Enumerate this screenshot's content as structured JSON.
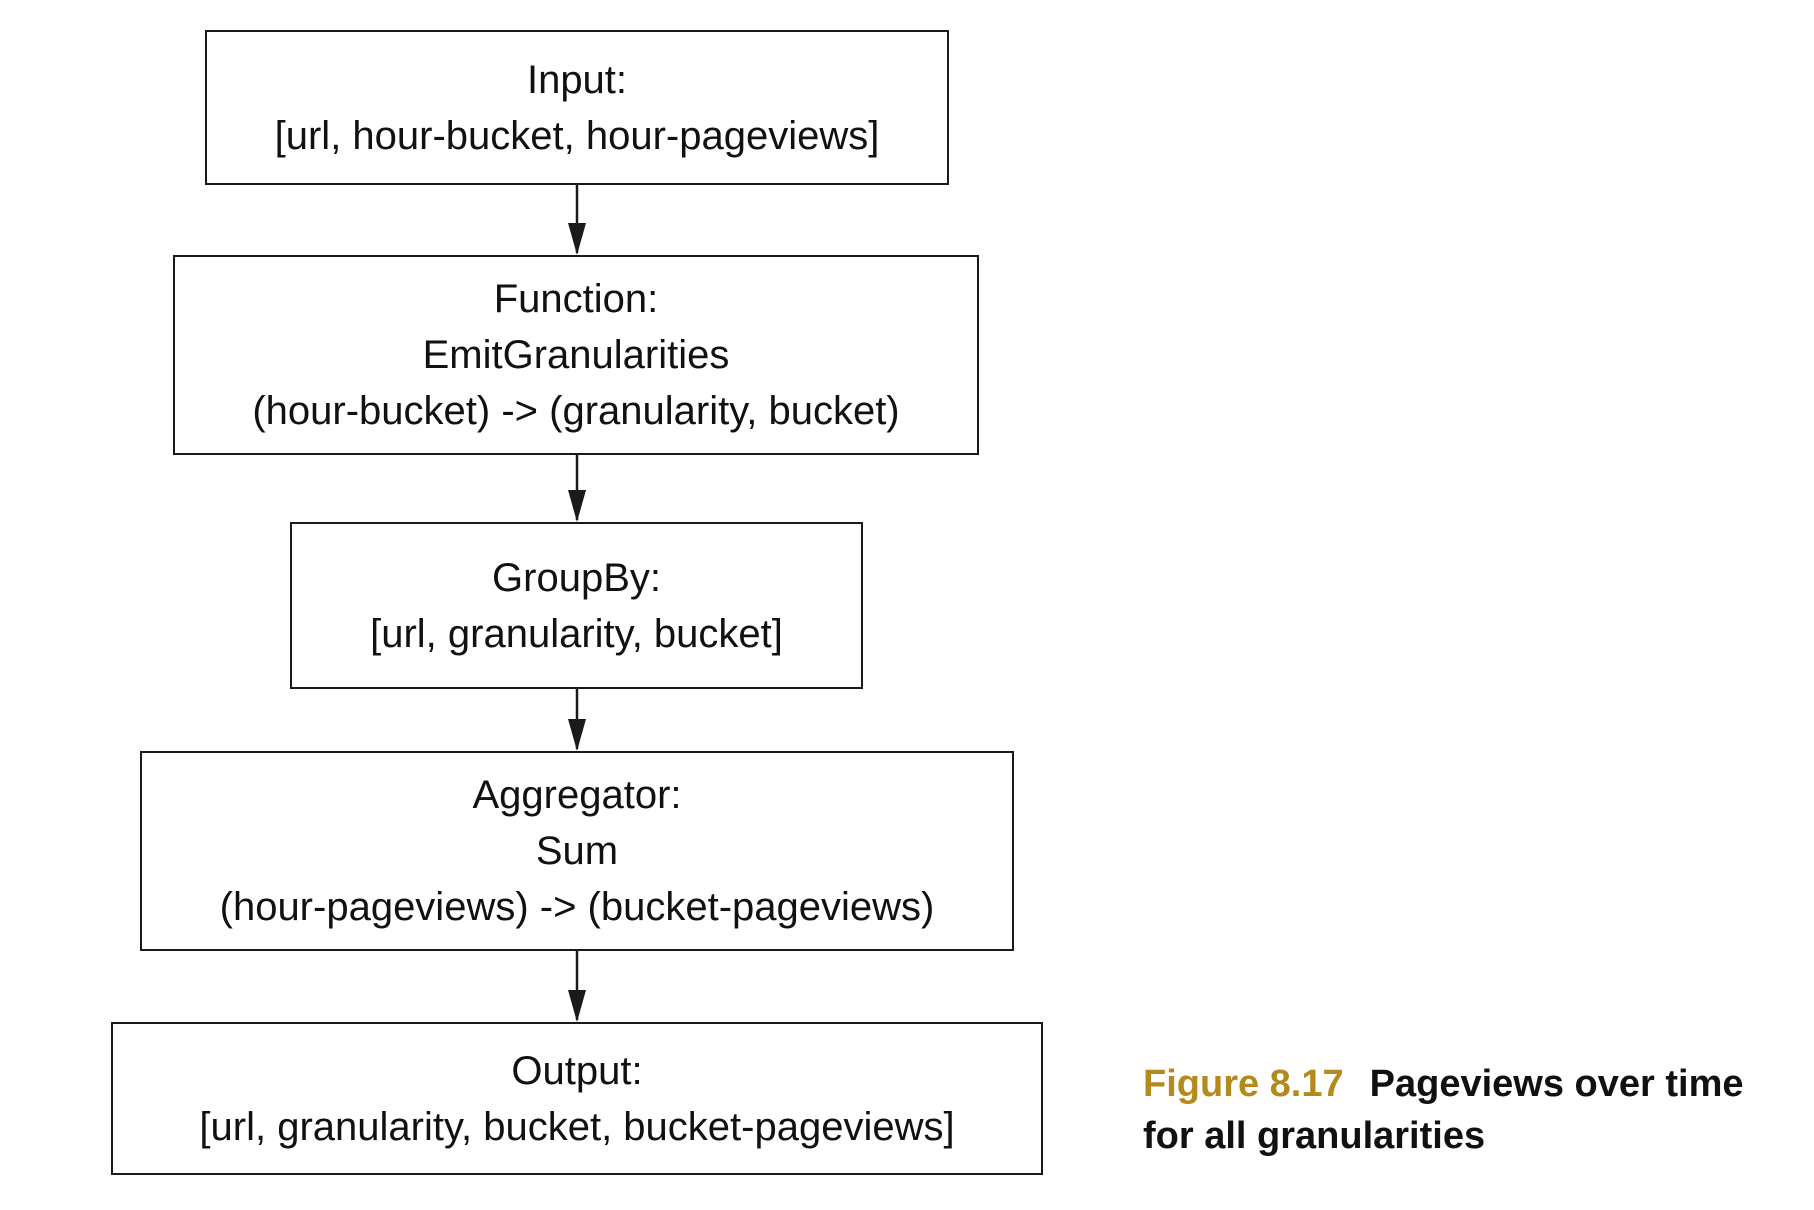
{
  "nodes": [
    {
      "id": "input",
      "lines": [
        "Input:",
        "[url, hour-bucket, hour-pageviews]"
      ]
    },
    {
      "id": "function",
      "lines": [
        "Function:",
        "EmitGranularities",
        "(hour-bucket) -> (granularity, bucket)"
      ]
    },
    {
      "id": "groupby",
      "lines": [
        "GroupBy:",
        "[url, granularity, bucket]"
      ]
    },
    {
      "id": "aggregator",
      "lines": [
        "Aggregator:",
        "Sum",
        "(hour-pageviews) -> (bucket-pageviews)"
      ]
    },
    {
      "id": "output",
      "lines": [
        "Output:",
        "[url, granularity, bucket, bucket-pageviews]"
      ]
    }
  ],
  "edges": [
    {
      "from": "input",
      "to": "function"
    },
    {
      "from": "function",
      "to": "groupby"
    },
    {
      "from": "groupby",
      "to": "aggregator"
    },
    {
      "from": "aggregator",
      "to": "output"
    }
  ],
  "caption": {
    "figure_number": "Figure 8.17",
    "text": "Pageviews over time for all granularities"
  }
}
